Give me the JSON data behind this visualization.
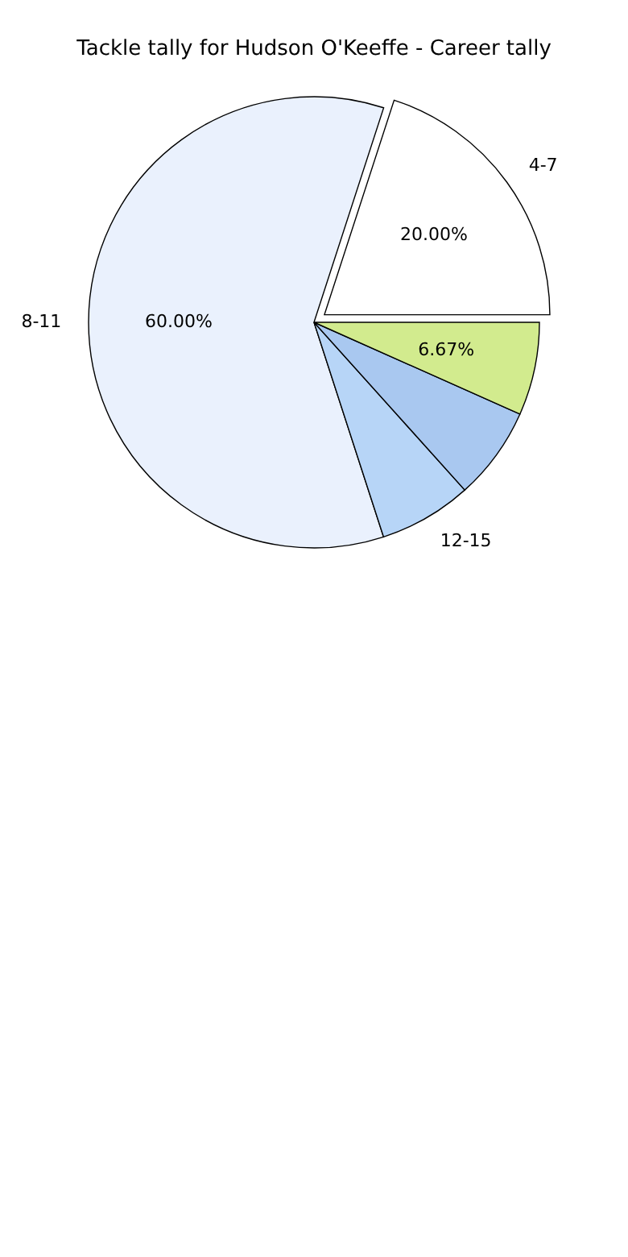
{
  "chart_data": {
    "type": "pie",
    "title": "Tackle tally for Hudson O'Keeffe - Career tally",
    "categories": [
      "4-7",
      "8-11",
      "12-15",
      null,
      null
    ],
    "values": [
      20,
      60,
      6.67,
      6.67,
      6.67
    ],
    "colors": [
      "#ffffff",
      "#eaf1fd",
      "#b7d5f7",
      "#a9c8f0",
      "#d2eb8e"
    ],
    "value_labels": [
      "20.00%",
      "60.00%",
      null,
      null,
      "6.67%"
    ]
  }
}
